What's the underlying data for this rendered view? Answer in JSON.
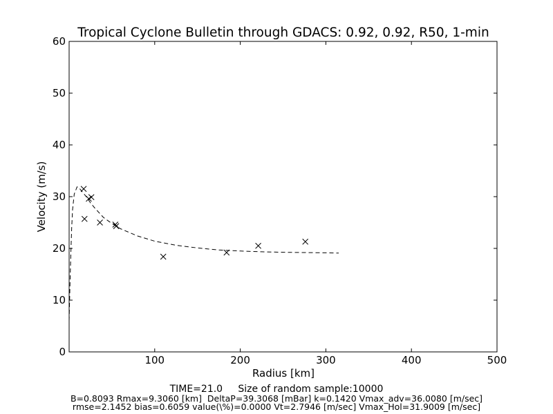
{
  "chart_data": {
    "type": "scatter",
    "title": "Tropical Cyclone Bulletin through GDACS: 0.92, 0.92, R50, 1-min",
    "xlabel": "Radius [km]",
    "ylabel": "Velocity (m/s)",
    "xlim": [
      0,
      500
    ],
    "ylim": [
      0,
      60
    ],
    "x_ticks": [
      "100",
      "200",
      "300",
      "400",
      "500"
    ],
    "y_ticks": [
      "0",
      "10",
      "20",
      "30",
      "40",
      "50",
      "60"
    ],
    "grid": false,
    "series": [
      {
        "marker": "x",
        "x": [
          17,
          18,
          23,
          26,
          36,
          54,
          55,
          110,
          184,
          221,
          276
        ],
        "y": [
          31.5,
          25.7,
          29.6,
          29.9,
          25.0,
          24.6,
          24.3,
          18.4,
          19.2,
          20.5,
          21.3
        ]
      },
      {
        "style": "dashed",
        "x": [
          0,
          1,
          2,
          3,
          4,
          6,
          9.3,
          12,
          15,
          20,
          25,
          30,
          40,
          50,
          60,
          80,
          100,
          125,
          150,
          175,
          200,
          225,
          250,
          275,
          300,
          315
        ],
        "y": [
          6.0,
          13.0,
          19.0,
          24.0,
          27.5,
          30.5,
          31.9,
          31.6,
          31.0,
          30.0,
          28.8,
          27.8,
          26.0,
          24.8,
          23.8,
          22.4,
          21.4,
          20.6,
          20.1,
          19.7,
          19.5,
          19.35,
          19.25,
          19.2,
          19.15,
          19.1
        ]
      }
    ]
  },
  "footer": {
    "time_label": "TIME=21.0",
    "sample_label": "Size of random sample:10000",
    "params_line1": "B=0.8093 Rmax=9.3060 [km]  DeltaP=39.3068 [mBar] k=0.1420 Vmax_adv=36.0080 [m/sec]",
    "params_line2": "rmse=2.1452 bias=0.6059 value(\\%)=0.0000 Vt=2.7946 [m/sec] Vmax_Hol=31.9009 [m/sec]"
  }
}
